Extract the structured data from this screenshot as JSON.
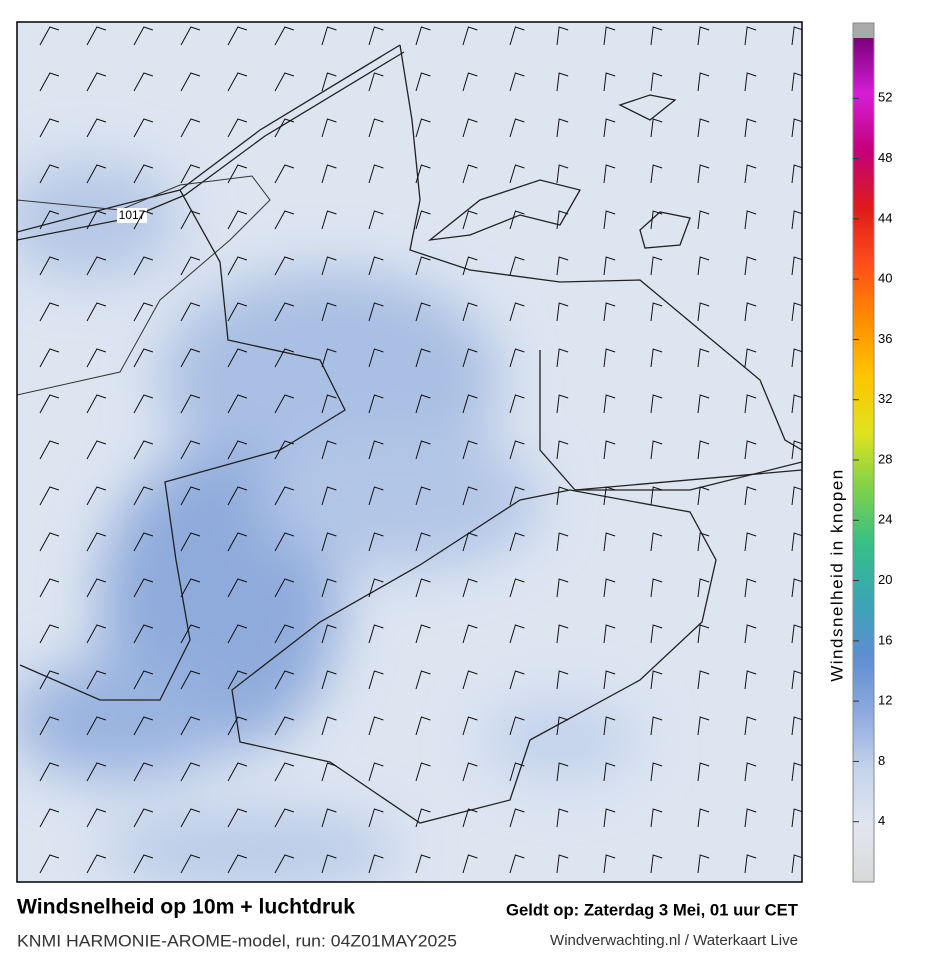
{
  "header": {
    "title": "Windsnelheid op 10m + luchtdruk",
    "subtitle": "KNMI HARMONIE-AROME-model, run: 04Z01MAY2025",
    "valid": "Geldt op: Zaterdag 3 Mei, 01 uur CET",
    "credit": "Windverwachting.nl / Waterkaart Live"
  },
  "map": {
    "isobar_label": 1017
  },
  "colorbar": {
    "label": "Windsnelheid in knopen",
    "lim": [
      0,
      56
    ],
    "ticks": [
      4,
      8,
      12,
      16,
      20,
      24,
      28,
      32,
      36,
      40,
      44,
      48,
      52
    ],
    "colors": [
      "#d9d9d9",
      "#e1e6ef",
      "#c5d3ec",
      "#8eaadf",
      "#5e8ed2",
      "#3aa6b4",
      "#35bf86",
      "#7fd24a",
      "#e0e21e",
      "#ffc400",
      "#ff8c00",
      "#ff4d1a",
      "#dd1a1a",
      "#c4007a",
      "#d61ed6",
      "#7a007a"
    ]
  }
}
